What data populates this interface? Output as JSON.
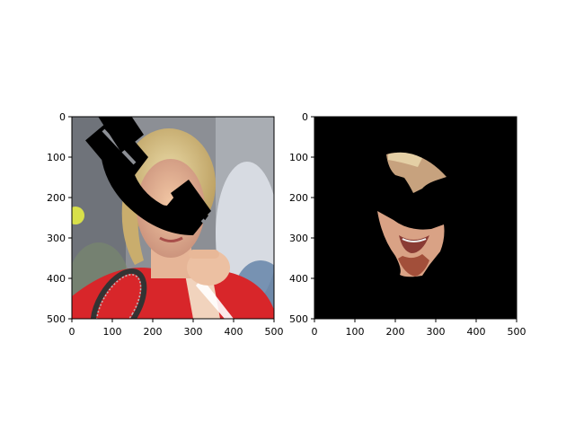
{
  "figure": {
    "panels": [
      {
        "name": "left-panel",
        "image": "photo of blonde tennis player in red shirt holding racket, with black telephone-handset occlusion over face",
        "x_ticks": [
          "0",
          "100",
          "200",
          "300",
          "400",
          "500"
        ],
        "y_ticks": [
          "0",
          "100",
          "200",
          "300",
          "400",
          "500"
        ],
        "x_range": [
          0,
          500
        ],
        "y_range": [
          0,
          500
        ]
      },
      {
        "name": "right-panel",
        "image": "segmentation mask: visible face-skin regions on black background, occluded area blacked out",
        "x_ticks": [
          "0",
          "100",
          "200",
          "300",
          "400",
          "500"
        ],
        "y_ticks": [
          "0",
          "100",
          "200",
          "300",
          "400",
          "500"
        ],
        "x_range": [
          0,
          500
        ],
        "y_range": [
          0,
          500
        ]
      }
    ]
  }
}
